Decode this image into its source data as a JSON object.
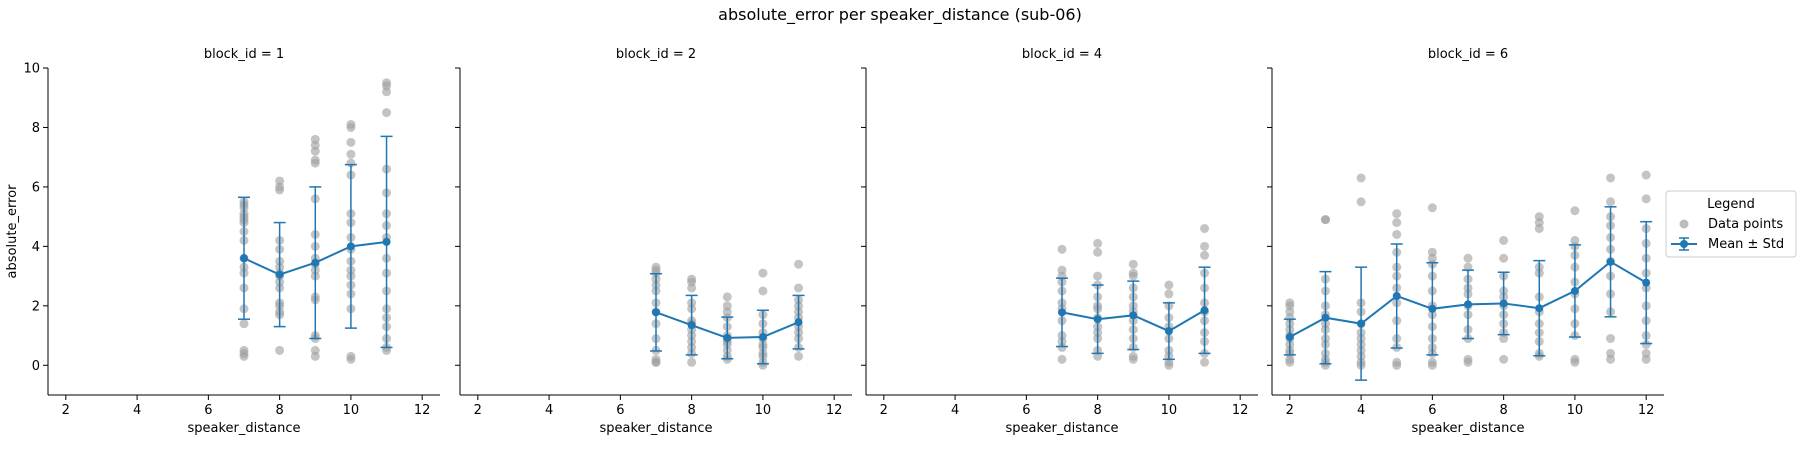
{
  "suptitle": "absolute_error per speaker_distance (sub-06)",
  "legend": {
    "title": "Legend",
    "items": [
      {
        "label": "Data points",
        "color": "#a0a0a0"
      },
      {
        "label": "Mean ± Std",
        "color": "#1f77b4"
      }
    ]
  },
  "chart_data": [
    {
      "type": "scatter",
      "title": "block_id = 1",
      "xlabel": "speaker_distance",
      "ylabel": "absolute_error",
      "xlim": [
        1.5,
        12.5
      ],
      "ylim": [
        -1,
        10
      ],
      "xticks": [
        2,
        4,
        6,
        8,
        10,
        12
      ],
      "yticks": [
        0,
        2,
        4,
        6,
        8,
        10
      ],
      "points": [
        {
          "x": 7,
          "y": [
            0.3,
            0.4,
            0.5,
            1.4,
            1.9,
            2.6,
            3.1,
            3.3,
            3.6,
            4.2,
            4.5,
            4.8,
            4.9,
            5.0,
            5.1,
            5.3,
            5.4,
            5.5
          ]
        },
        {
          "x": 8,
          "y": [
            0.5,
            1.7,
            1.8,
            2.0,
            2.1,
            2.6,
            2.8,
            3.0,
            3.1,
            3.3,
            3.5,
            3.9,
            4.2,
            5.9,
            6.0,
            6.2
          ]
        },
        {
          "x": 9,
          "y": [
            0.3,
            0.5,
            0.9,
            1.0,
            2.2,
            2.3,
            3.0,
            3.2,
            3.4,
            3.6,
            4.0,
            4.4,
            5.6,
            6.8,
            6.9,
            7.2,
            7.4,
            7.6
          ]
        },
        {
          "x": 10,
          "y": [
            0.2,
            0.3,
            1.9,
            2.4,
            2.7,
            3.0,
            3.2,
            3.5,
            3.9,
            4.3,
            4.8,
            5.1,
            6.4,
            6.8,
            7.1,
            7.5,
            8.0,
            8.1
          ]
        },
        {
          "x": 11,
          "y": [
            0.5,
            0.6,
            0.9,
            1.3,
            1.6,
            1.9,
            2.5,
            3.1,
            3.6,
            4.3,
            4.7,
            5.1,
            5.8,
            6.6,
            8.5,
            9.2,
            9.4,
            9.5
          ]
        }
      ],
      "mean": [
        {
          "x": 7,
          "y": 3.6
        },
        {
          "x": 8,
          "y": 3.05
        },
        {
          "x": 9,
          "y": 3.45
        },
        {
          "x": 10,
          "y": 4.0
        },
        {
          "x": 11,
          "y": 4.15
        }
      ],
      "std": [
        2.05,
        1.75,
        2.55,
        2.75,
        3.55
      ]
    },
    {
      "type": "scatter",
      "title": "block_id = 2",
      "xlabel": "speaker_distance",
      "ylabel": "",
      "xlim": [
        1.5,
        12.5
      ],
      "ylim": [
        -1,
        10
      ],
      "xticks": [
        2,
        4,
        6,
        8,
        10,
        12
      ],
      "yticks": [
        0,
        2,
        4,
        6,
        8,
        10
      ],
      "points": [
        {
          "x": 7,
          "y": [
            0.1,
            0.1,
            0.2,
            0.5,
            0.9,
            1.4,
            1.8,
            2.1,
            2.5,
            2.7,
            2.9,
            3.1,
            3.2,
            3.3
          ]
        },
        {
          "x": 8,
          "y": [
            0.1,
            0.4,
            0.6,
            0.8,
            1.0,
            1.2,
            1.4,
            1.5,
            1.9,
            2.1,
            2.6,
            2.8,
            2.9
          ]
        },
        {
          "x": 9,
          "y": [
            0.2,
            0.3,
            0.5,
            0.7,
            0.8,
            0.9,
            1.0,
            1.3,
            1.6,
            1.8,
            2.0,
            2.3
          ]
        },
        {
          "x": 10,
          "y": [
            0.0,
            0.1,
            0.3,
            0.4,
            0.6,
            0.7,
            0.9,
            1.1,
            1.4,
            1.7,
            2.5,
            3.1
          ]
        },
        {
          "x": 11,
          "y": [
            0.3,
            0.6,
            0.9,
            1.1,
            1.3,
            1.6,
            1.8,
            2.0,
            2.2,
            2.6,
            3.4
          ]
        }
      ],
      "mean": [
        {
          "x": 7,
          "y": 1.78
        },
        {
          "x": 8,
          "y": 1.35
        },
        {
          "x": 9,
          "y": 0.92
        },
        {
          "x": 10,
          "y": 0.95
        },
        {
          "x": 11,
          "y": 1.45
        }
      ],
      "std": [
        1.3,
        1.0,
        0.7,
        0.9,
        0.9
      ]
    },
    {
      "type": "scatter",
      "title": "block_id = 4",
      "xlabel": "speaker_distance",
      "ylabel": "",
      "xlim": [
        1.5,
        12.5
      ],
      "ylim": [
        -1,
        10
      ],
      "xticks": [
        2,
        4,
        6,
        8,
        10,
        12
      ],
      "yticks": [
        0,
        2,
        4,
        6,
        8,
        10
      ],
      "points": [
        {
          "x": 7,
          "y": [
            0.2,
            0.6,
            0.8,
            1.0,
            1.5,
            1.9,
            2.1,
            2.5,
            2.8,
            3.0,
            3.2,
            3.9
          ]
        },
        {
          "x": 8,
          "y": [
            0.3,
            0.5,
            0.9,
            1.1,
            1.3,
            1.6,
            1.9,
            2.0,
            2.3,
            2.7,
            3.0,
            3.8,
            4.1
          ]
        },
        {
          "x": 9,
          "y": [
            0.2,
            0.3,
            0.6,
            0.9,
            1.2,
            1.5,
            1.8,
            2.0,
            2.3,
            2.6,
            3.0,
            3.1,
            3.4
          ]
        },
        {
          "x": 10,
          "y": [
            0.0,
            0.1,
            0.3,
            0.5,
            0.9,
            1.3,
            1.6,
            2.0,
            2.4,
            2.7
          ]
        },
        {
          "x": 11,
          "y": [
            0.1,
            0.4,
            0.8,
            1.1,
            1.5,
            1.8,
            2.1,
            2.6,
            3.1,
            3.7,
            4.0,
            4.6
          ]
        }
      ],
      "mean": [
        {
          "x": 7,
          "y": 1.78
        },
        {
          "x": 8,
          "y": 1.55
        },
        {
          "x": 9,
          "y": 1.68
        },
        {
          "x": 10,
          "y": 1.15
        },
        {
          "x": 11,
          "y": 1.85
        }
      ],
      "std": [
        1.15,
        1.15,
        1.15,
        0.95,
        1.45
      ]
    },
    {
      "type": "scatter",
      "title": "block_id = 6",
      "xlabel": "speaker_distance",
      "ylabel": "",
      "xlim": [
        1.5,
        12.5
      ],
      "ylim": [
        -1,
        10
      ],
      "xticks": [
        2,
        4,
        6,
        8,
        10,
        12
      ],
      "yticks": [
        0,
        2,
        4,
        6,
        8,
        10
      ],
      "points": [
        {
          "x": 2,
          "y": [
            0.1,
            0.2,
            0.4,
            0.5,
            0.7,
            0.9,
            1.0,
            1.2,
            1.4,
            1.6,
            1.8,
            2.0,
            2.1
          ]
        },
        {
          "x": 3,
          "y": [
            0.0,
            0.1,
            0.2,
            0.4,
            0.7,
            0.9,
            1.2,
            1.4,
            1.7,
            2.0,
            2.5,
            2.9,
            4.9,
            4.9
          ]
        },
        {
          "x": 4,
          "y": [
            0.0,
            0.1,
            0.3,
            0.5,
            0.7,
            0.9,
            1.1,
            1.4,
            1.8,
            2.1,
            5.5,
            6.3
          ]
        },
        {
          "x": 5,
          "y": [
            0.0,
            0.1,
            0.6,
            0.9,
            1.5,
            2.1,
            2.6,
            3.0,
            3.3,
            3.8,
            4.4,
            4.8,
            5.1
          ]
        },
        {
          "x": 6,
          "y": [
            0.0,
            0.1,
            0.4,
            0.6,
            0.9,
            1.3,
            1.7,
            2.0,
            2.5,
            3.0,
            3.4,
            3.6,
            3.8,
            5.3
          ]
        },
        {
          "x": 7,
          "y": [
            0.1,
            0.2,
            0.9,
            1.2,
            1.7,
            2.0,
            2.4,
            2.6,
            2.9,
            3.3,
            3.6
          ]
        },
        {
          "x": 8,
          "y": [
            0.2,
            0.9,
            1.1,
            1.4,
            1.7,
            2.0,
            2.3,
            2.5,
            3.0,
            3.6,
            4.2
          ]
        },
        {
          "x": 9,
          "y": [
            0.3,
            0.4,
            0.8,
            1.1,
            1.4,
            1.8,
            2.3,
            3.1,
            3.3,
            4.6,
            4.8,
            5.0
          ]
        },
        {
          "x": 10,
          "y": [
            0.1,
            0.2,
            1.0,
            1.4,
            1.9,
            2.4,
            2.8,
            3.3,
            3.7,
            4.0,
            4.2,
            5.2
          ]
        },
        {
          "x": 11,
          "y": [
            0.2,
            0.4,
            0.9,
            1.8,
            2.4,
            3.0,
            3.5,
            3.9,
            4.3,
            4.7,
            5.0,
            5.5,
            6.3
          ]
        },
        {
          "x": 12,
          "y": [
            0.2,
            0.4,
            0.7,
            1.0,
            1.5,
            2.0,
            2.6,
            3.1,
            3.6,
            4.1,
            4.6,
            5.6,
            6.4
          ]
        }
      ],
      "mean": [
        {
          "x": 2,
          "y": 0.95
        },
        {
          "x": 3,
          "y": 1.6
        },
        {
          "x": 4,
          "y": 1.4
        },
        {
          "x": 5,
          "y": 2.33
        },
        {
          "x": 6,
          "y": 1.9
        },
        {
          "x": 7,
          "y": 2.05
        },
        {
          "x": 8,
          "y": 2.08
        },
        {
          "x": 9,
          "y": 1.92
        },
        {
          "x": 10,
          "y": 2.5
        },
        {
          "x": 11,
          "y": 3.48
        },
        {
          "x": 12,
          "y": 2.78
        }
      ],
      "std": [
        0.6,
        1.55,
        1.9,
        1.75,
        1.55,
        1.15,
        1.05,
        1.6,
        1.55,
        1.85,
        2.05
      ]
    }
  ]
}
